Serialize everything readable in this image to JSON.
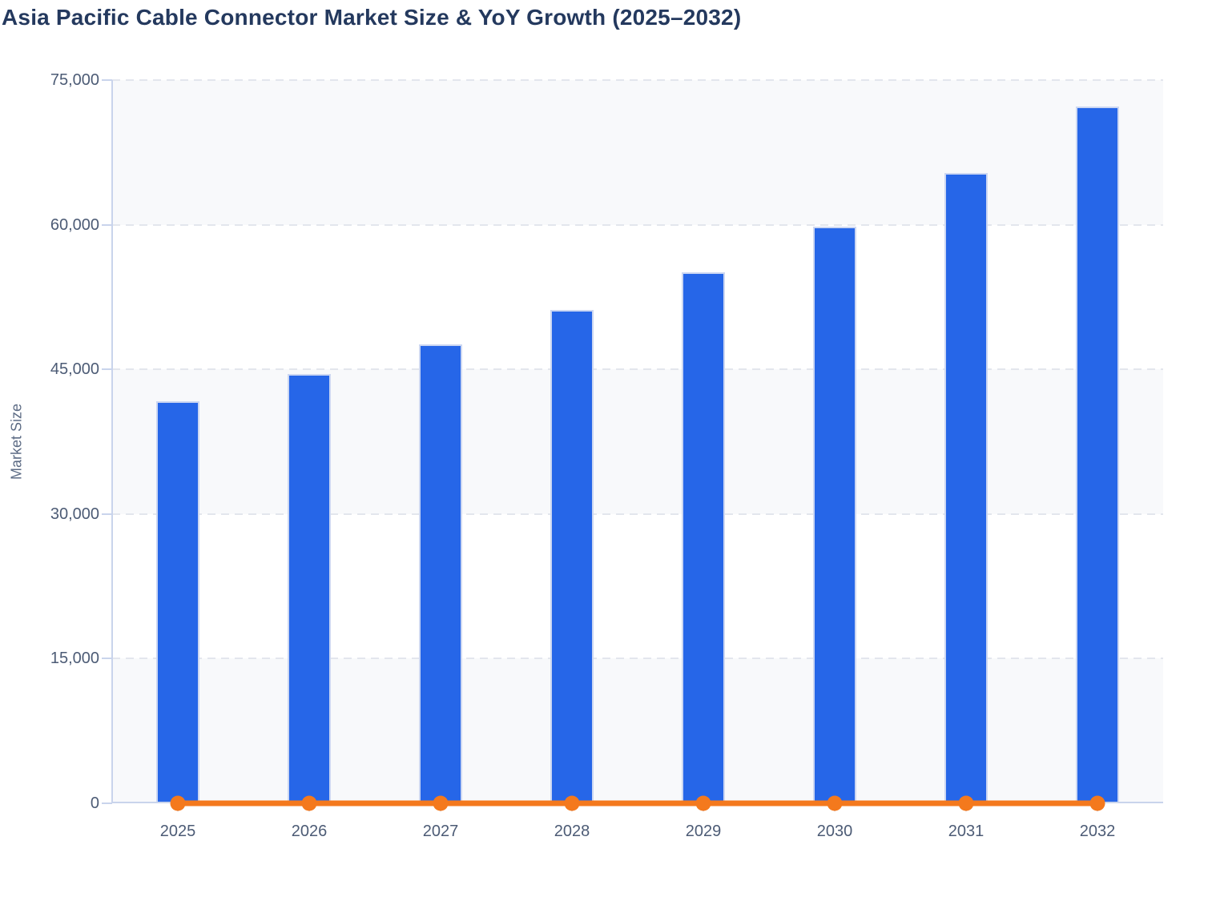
{
  "colors": {
    "bar": "#2666e8",
    "bar_border": "#ccd7f2",
    "line": "#f4791d",
    "gridline": "#e3e6ed",
    "band_fill": "#f8f9fb",
    "axis_line": "#c9d4ec",
    "title_text": "#24395e",
    "axis_text": "#4c5b75",
    "axis_title_text": "#5c6b84",
    "background": "#ffffff"
  },
  "chart_data": {
    "type": "bar",
    "title": "Asia Pacific Cable Connector Market Size & YoY Growth (2025–2032)",
    "xlabel": "",
    "ylabel": "Market Size",
    "categories": [
      "2025",
      "2026",
      "2027",
      "2028",
      "2029",
      "2030",
      "2031",
      "2032"
    ],
    "series": [
      {
        "name": "Market Size",
        "type": "bar",
        "values": [
          41700,
          44500,
          47600,
          51200,
          55100,
          59800,
          65400,
          72300
        ]
      },
      {
        "name": "YoY Growth",
        "type": "line",
        "values": [
          0,
          0,
          0,
          0,
          0,
          0,
          0,
          0
        ],
        "note": "Orange line with round markers renders flat along the 0 baseline; its secondary growth axis is not displayed."
      }
    ],
    "ylim": [
      0,
      75000
    ],
    "ytick_interval": 15000,
    "ytick_labels": [
      "0",
      "15,000",
      "30,000",
      "45,000",
      "60,000",
      "75,000"
    ],
    "grid": "dashed horizontal gridlines with alternating band fills",
    "legend": "none"
  }
}
